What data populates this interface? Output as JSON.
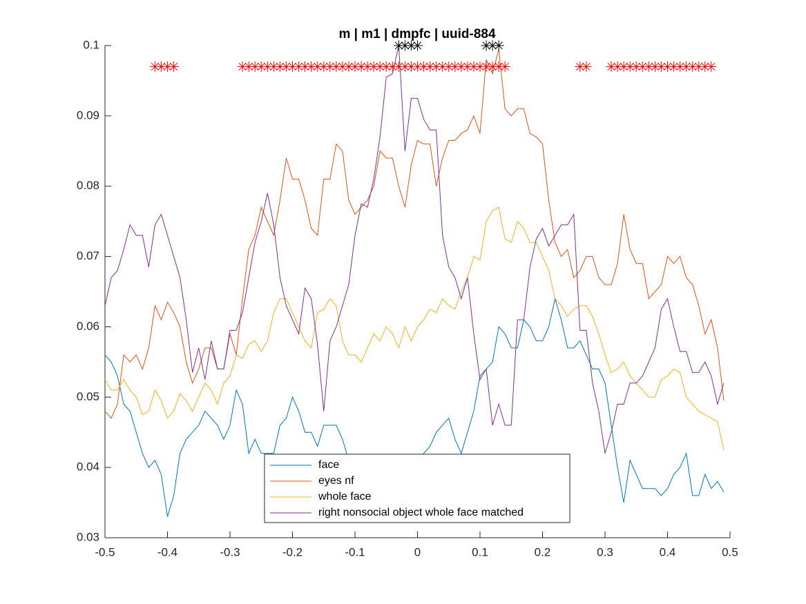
{
  "chart_data": {
    "type": "line",
    "title": "m | m1 | dmpfc | uuid-884",
    "x": [
      -0.5,
      -0.49,
      -0.48,
      -0.47,
      -0.46,
      -0.45,
      -0.44,
      -0.43,
      -0.42,
      -0.41,
      -0.4,
      -0.39,
      -0.38,
      -0.37,
      -0.36,
      -0.35,
      -0.34,
      -0.33,
      -0.32,
      -0.31,
      -0.3,
      -0.29,
      -0.28,
      -0.27,
      -0.26,
      -0.25,
      -0.24,
      -0.23,
      -0.22,
      -0.21,
      -0.2,
      -0.19,
      -0.18,
      -0.17,
      -0.16,
      -0.15,
      -0.14,
      -0.13,
      -0.12,
      -0.11,
      -0.1,
      -0.09,
      -0.08,
      -0.07,
      -0.06,
      -0.05,
      -0.04,
      -0.03,
      -0.02,
      -0.01,
      0,
      0.01,
      0.02,
      0.03,
      0.04,
      0.05,
      0.06,
      0.07,
      0.08,
      0.09,
      0.1,
      0.11,
      0.12,
      0.13,
      0.14,
      0.15,
      0.16,
      0.17,
      0.18,
      0.19,
      0.2,
      0.21,
      0.22,
      0.23,
      0.24,
      0.25,
      0.26,
      0.27,
      0.28,
      0.29,
      0.3,
      0.31,
      0.32,
      0.33,
      0.34,
      0.35,
      0.36,
      0.37,
      0.38,
      0.39,
      0.4,
      0.41,
      0.42,
      0.43,
      0.44,
      0.45,
      0.46,
      0.47,
      0.48,
      0.49
    ],
    "series": [
      {
        "name": "face",
        "color": "#0072bd",
        "values": [
          0.056,
          0.055,
          0.053,
          0.049,
          0.048,
          0.045,
          0.042,
          0.04,
          0.041,
          0.039,
          0.033,
          0.036,
          0.042,
          0.044,
          0.045,
          0.046,
          0.048,
          0.047,
          0.046,
          0.044,
          0.046,
          0.051,
          0.049,
          0.042,
          0.044,
          0.042,
          0.042,
          0.042,
          0.046,
          0.047,
          0.05,
          0.048,
          0.045,
          0.045,
          0.043,
          0.046,
          0.046,
          0.046,
          0.044,
          0.041,
          0.04,
          0.039,
          0.038,
          0.038,
          0.039,
          0.04,
          0.04,
          0.039,
          0.04,
          0.041,
          0.04,
          0.042,
          0.043,
          0.045,
          0.046,
          0.047,
          0.044,
          0.042,
          0.045,
          0.048,
          0.053,
          0.054,
          0.055,
          0.06,
          0.059,
          0.057,
          0.057,
          0.061,
          0.06,
          0.058,
          0.058,
          0.06,
          0.064,
          0.061,
          0.057,
          0.057,
          0.058,
          0.056,
          0.054,
          0.054,
          0.052,
          0.046,
          0.04,
          0.035,
          0.041,
          0.039,
          0.037,
          0.037,
          0.037,
          0.036,
          0.037,
          0.039,
          0.04,
          0.042,
          0.036,
          0.036,
          0.039,
          0.037,
          0.038,
          0.0365
        ]
      },
      {
        "name": "eyes nf",
        "color": "#d95319",
        "values": [
          0.048,
          0.047,
          0.049,
          0.056,
          0.055,
          0.056,
          0.054,
          0.057,
          0.063,
          0.061,
          0.0635,
          0.062,
          0.06,
          0.055,
          0.052,
          0.054,
          0.057,
          0.057,
          0.054,
          0.054,
          0.059,
          0.056,
          0.064,
          0.071,
          0.073,
          0.077,
          0.075,
          0.073,
          0.078,
          0.084,
          0.081,
          0.081,
          0.078,
          0.074,
          0.073,
          0.081,
          0.081,
          0.086,
          0.085,
          0.078,
          0.076,
          0.077,
          0.078,
          0.08,
          0.085,
          0.084,
          0.084,
          0.08,
          0.077,
          0.083,
          0.0865,
          0.086,
          0.086,
          0.08,
          0.084,
          0.0865,
          0.0865,
          0.0875,
          0.088,
          0.09,
          0.0875,
          0.098,
          0.096,
          0.0995,
          0.091,
          0.09,
          0.091,
          0.091,
          0.0875,
          0.087,
          0.086,
          0.078,
          0.072,
          0.07,
          0.071,
          0.067,
          0.068,
          0.07,
          0.07,
          0.067,
          0.066,
          0.066,
          0.069,
          0.076,
          0.071,
          0.069,
          0.069,
          0.064,
          0.065,
          0.066,
          0.07,
          0.069,
          0.07,
          0.067,
          0.066,
          0.063,
          0.059,
          0.061,
          0.057,
          0.0495
        ]
      },
      {
        "name": "whole face",
        "color": "#edb120",
        "values": [
          0.0525,
          0.051,
          0.051,
          0.0525,
          0.051,
          0.05,
          0.0475,
          0.048,
          0.051,
          0.0495,
          0.047,
          0.048,
          0.0505,
          0.0495,
          0.048,
          0.05,
          0.052,
          0.051,
          0.049,
          0.052,
          0.053,
          0.056,
          0.0555,
          0.0575,
          0.058,
          0.0565,
          0.058,
          0.062,
          0.064,
          0.064,
          0.062,
          0.06,
          0.058,
          0.057,
          0.062,
          0.0625,
          0.064,
          0.063,
          0.058,
          0.056,
          0.056,
          0.055,
          0.057,
          0.059,
          0.058,
          0.06,
          0.059,
          0.057,
          0.06,
          0.058,
          0.06,
          0.061,
          0.0625,
          0.062,
          0.064,
          0.063,
          0.0625,
          0.065,
          0.067,
          0.07,
          0.0695,
          0.075,
          0.0765,
          0.077,
          0.0725,
          0.072,
          0.075,
          0.074,
          0.072,
          0.072,
          0.07,
          0.068,
          0.064,
          0.063,
          0.0615,
          0.0625,
          0.063,
          0.063,
          0.0615,
          0.059,
          0.056,
          0.0535,
          0.054,
          0.055,
          0.053,
          0.052,
          0.051,
          0.05,
          0.05,
          0.0525,
          0.053,
          0.054,
          0.0535,
          0.05,
          0.049,
          0.048,
          0.0475,
          0.047,
          0.0465,
          0.0425
        ]
      },
      {
        "name": "right nonsocial object whole face matched",
        "color": "#7e2f8e",
        "values": [
          0.063,
          0.067,
          0.068,
          0.071,
          0.0745,
          0.073,
          0.073,
          0.0685,
          0.0745,
          0.076,
          0.073,
          0.07,
          0.067,
          0.061,
          0.0535,
          0.057,
          0.0525,
          0.058,
          0.054,
          0.054,
          0.0595,
          0.0595,
          0.062,
          0.067,
          0.072,
          0.075,
          0.079,
          0.0745,
          0.067,
          0.063,
          0.061,
          0.059,
          0.0655,
          0.064,
          0.0575,
          0.048,
          0.058,
          0.06,
          0.063,
          0.066,
          0.073,
          0.0775,
          0.077,
          0.081,
          0.087,
          0.0955,
          0.096,
          0.1,
          0.085,
          0.0925,
          0.0925,
          0.0895,
          0.088,
          0.088,
          0.073,
          0.0685,
          0.067,
          0.064,
          0.067,
          0.059,
          0.0525,
          0.054,
          0.046,
          0.049,
          0.046,
          0.046,
          0.061,
          0.061,
          0.0685,
          0.0725,
          0.074,
          0.0715,
          0.073,
          0.0745,
          0.0745,
          0.076,
          0.0595,
          0.0595,
          0.052,
          0.048,
          0.042,
          0.045,
          0.049,
          0.049,
          0.052,
          0.052,
          0.053,
          0.055,
          0.057,
          0.0625,
          0.064,
          0.06,
          0.0565,
          0.0565,
          0.0535,
          0.0535,
          0.055,
          0.053,
          0.049,
          0.052
        ]
      }
    ],
    "markers": [
      {
        "color": "#ff0000",
        "y": 0.097,
        "x": [
          -0.42,
          -0.41,
          -0.4,
          -0.39,
          -0.28,
          -0.27,
          -0.26,
          -0.25,
          -0.24,
          -0.23,
          -0.22,
          -0.21,
          -0.2,
          -0.19,
          -0.18,
          -0.17,
          -0.16,
          -0.15,
          -0.14,
          -0.13,
          -0.12,
          -0.11,
          -0.1,
          -0.09,
          -0.08,
          -0.07,
          -0.06,
          -0.05,
          -0.04,
          -0.03,
          -0.02,
          -0.01,
          0,
          0.01,
          0.02,
          0.03,
          0.04,
          0.05,
          0.06,
          0.07,
          0.08,
          0.09,
          0.1,
          0.11,
          0.12,
          0.13,
          0.14,
          0.26,
          0.27,
          0.31,
          0.32,
          0.33,
          0.34,
          0.35,
          0.36,
          0.37,
          0.38,
          0.39,
          0.4,
          0.41,
          0.42,
          0.43,
          0.44,
          0.45,
          0.46,
          0.47
        ]
      },
      {
        "color": "#000000",
        "y": 0.1,
        "x": [
          -0.03,
          -0.02,
          -0.01,
          0,
          0.11,
          0.12,
          0.13
        ]
      }
    ],
    "xlim": [
      -0.5,
      0.5
    ],
    "xticks": [
      -0.5,
      -0.4,
      -0.3,
      -0.2,
      -0.1,
      0,
      0.1,
      0.2,
      0.3,
      0.4,
      0.5
    ],
    "ylim": [
      0.03,
      0.1
    ],
    "yticks": [
      0.03,
      0.04,
      0.05,
      0.06,
      0.07,
      0.08,
      0.09,
      0.1
    ],
    "grid": false,
    "legend": "south"
  }
}
